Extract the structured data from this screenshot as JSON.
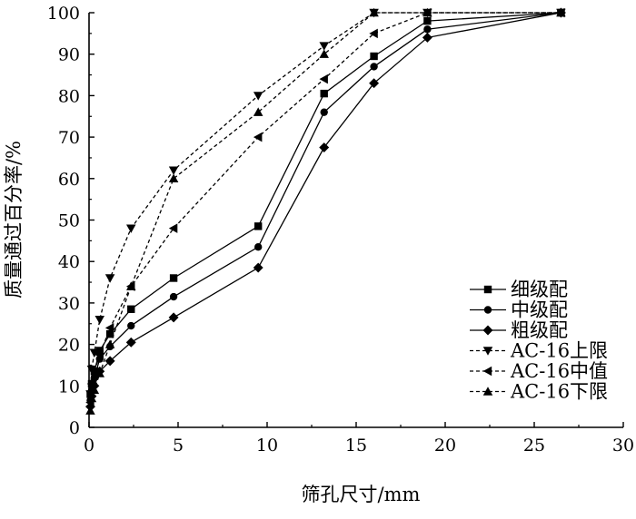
{
  "chart_data": {
    "type": "line",
    "xlabel": "筛孔尺寸/mm",
    "ylabel": "质量通过百分率/%",
    "xlim": [
      0,
      30
    ],
    "ylim": [
      0,
      100
    ],
    "xticks": [
      "0",
      "5",
      "10",
      "15",
      "20",
      "25",
      "30"
    ],
    "yticks": [
      "0",
      "10",
      "20",
      "30",
      "40",
      "50",
      "60",
      "70",
      "80",
      "90",
      "100"
    ],
    "grid": false,
    "legend_position": "bottom-right",
    "series": [
      {
        "name": "细级配",
        "line_style": "solid",
        "marker": "square",
        "x": [
          0.075,
          0.15,
          0.3,
          0.6,
          1.18,
          2.36,
          4.75,
          9.5,
          13.2,
          16,
          19,
          26.5
        ],
        "y": [
          8,
          10.5,
          13.5,
          18.5,
          22.5,
          28.5,
          36,
          48.5,
          80.5,
          89.5,
          98,
          100
        ]
      },
      {
        "name": "中级配",
        "line_style": "solid",
        "marker": "circle",
        "x": [
          0.075,
          0.15,
          0.3,
          0.6,
          1.18,
          2.36,
          4.75,
          9.5,
          13.2,
          16,
          19,
          26.5
        ],
        "y": [
          6.5,
          9,
          12,
          16.5,
          19.5,
          24.5,
          31.5,
          43.5,
          76,
          87,
          96,
          100
        ]
      },
      {
        "name": "粗级配",
        "line_style": "solid",
        "marker": "diamond",
        "x": [
          0.075,
          0.15,
          0.3,
          0.6,
          1.18,
          2.36,
          4.75,
          9.5,
          13.2,
          16,
          19,
          26.5
        ],
        "y": [
          5,
          7.5,
          10,
          13.5,
          16,
          20.5,
          26.5,
          38.5,
          67.5,
          83,
          94,
          100
        ]
      },
      {
        "name": "AC-16上限",
        "line_style": "dashed",
        "marker": "triangle-down",
        "x": [
          0.075,
          0.15,
          0.3,
          0.6,
          1.18,
          2.36,
          4.75,
          9.5,
          13.2,
          16,
          19,
          26.5
        ],
        "y": [
          8,
          14,
          18,
          26,
          36,
          48,
          62,
          80,
          92,
          100,
          100,
          100
        ]
      },
      {
        "name": "AC-16中值",
        "line_style": "dashed",
        "marker": "triangle-left",
        "x": [
          0.075,
          0.15,
          0.3,
          0.6,
          1.18,
          2.36,
          4.75,
          9.5,
          13.2,
          16,
          19,
          26.5
        ],
        "y": [
          6,
          10.5,
          13.5,
          17.5,
          24,
          34,
          48,
          70,
          84,
          95,
          100,
          100
        ]
      },
      {
        "name": "AC-16下限",
        "line_style": "dashed",
        "marker": "triangle-up",
        "x": [
          0.075,
          0.15,
          0.3,
          0.6,
          1.18,
          2.36,
          4.75,
          9.5,
          13.2,
          16,
          19,
          26.5
        ],
        "y": [
          4,
          7,
          9,
          13,
          20,
          34,
          60,
          76,
          90,
          100,
          100,
          100
        ]
      }
    ]
  }
}
